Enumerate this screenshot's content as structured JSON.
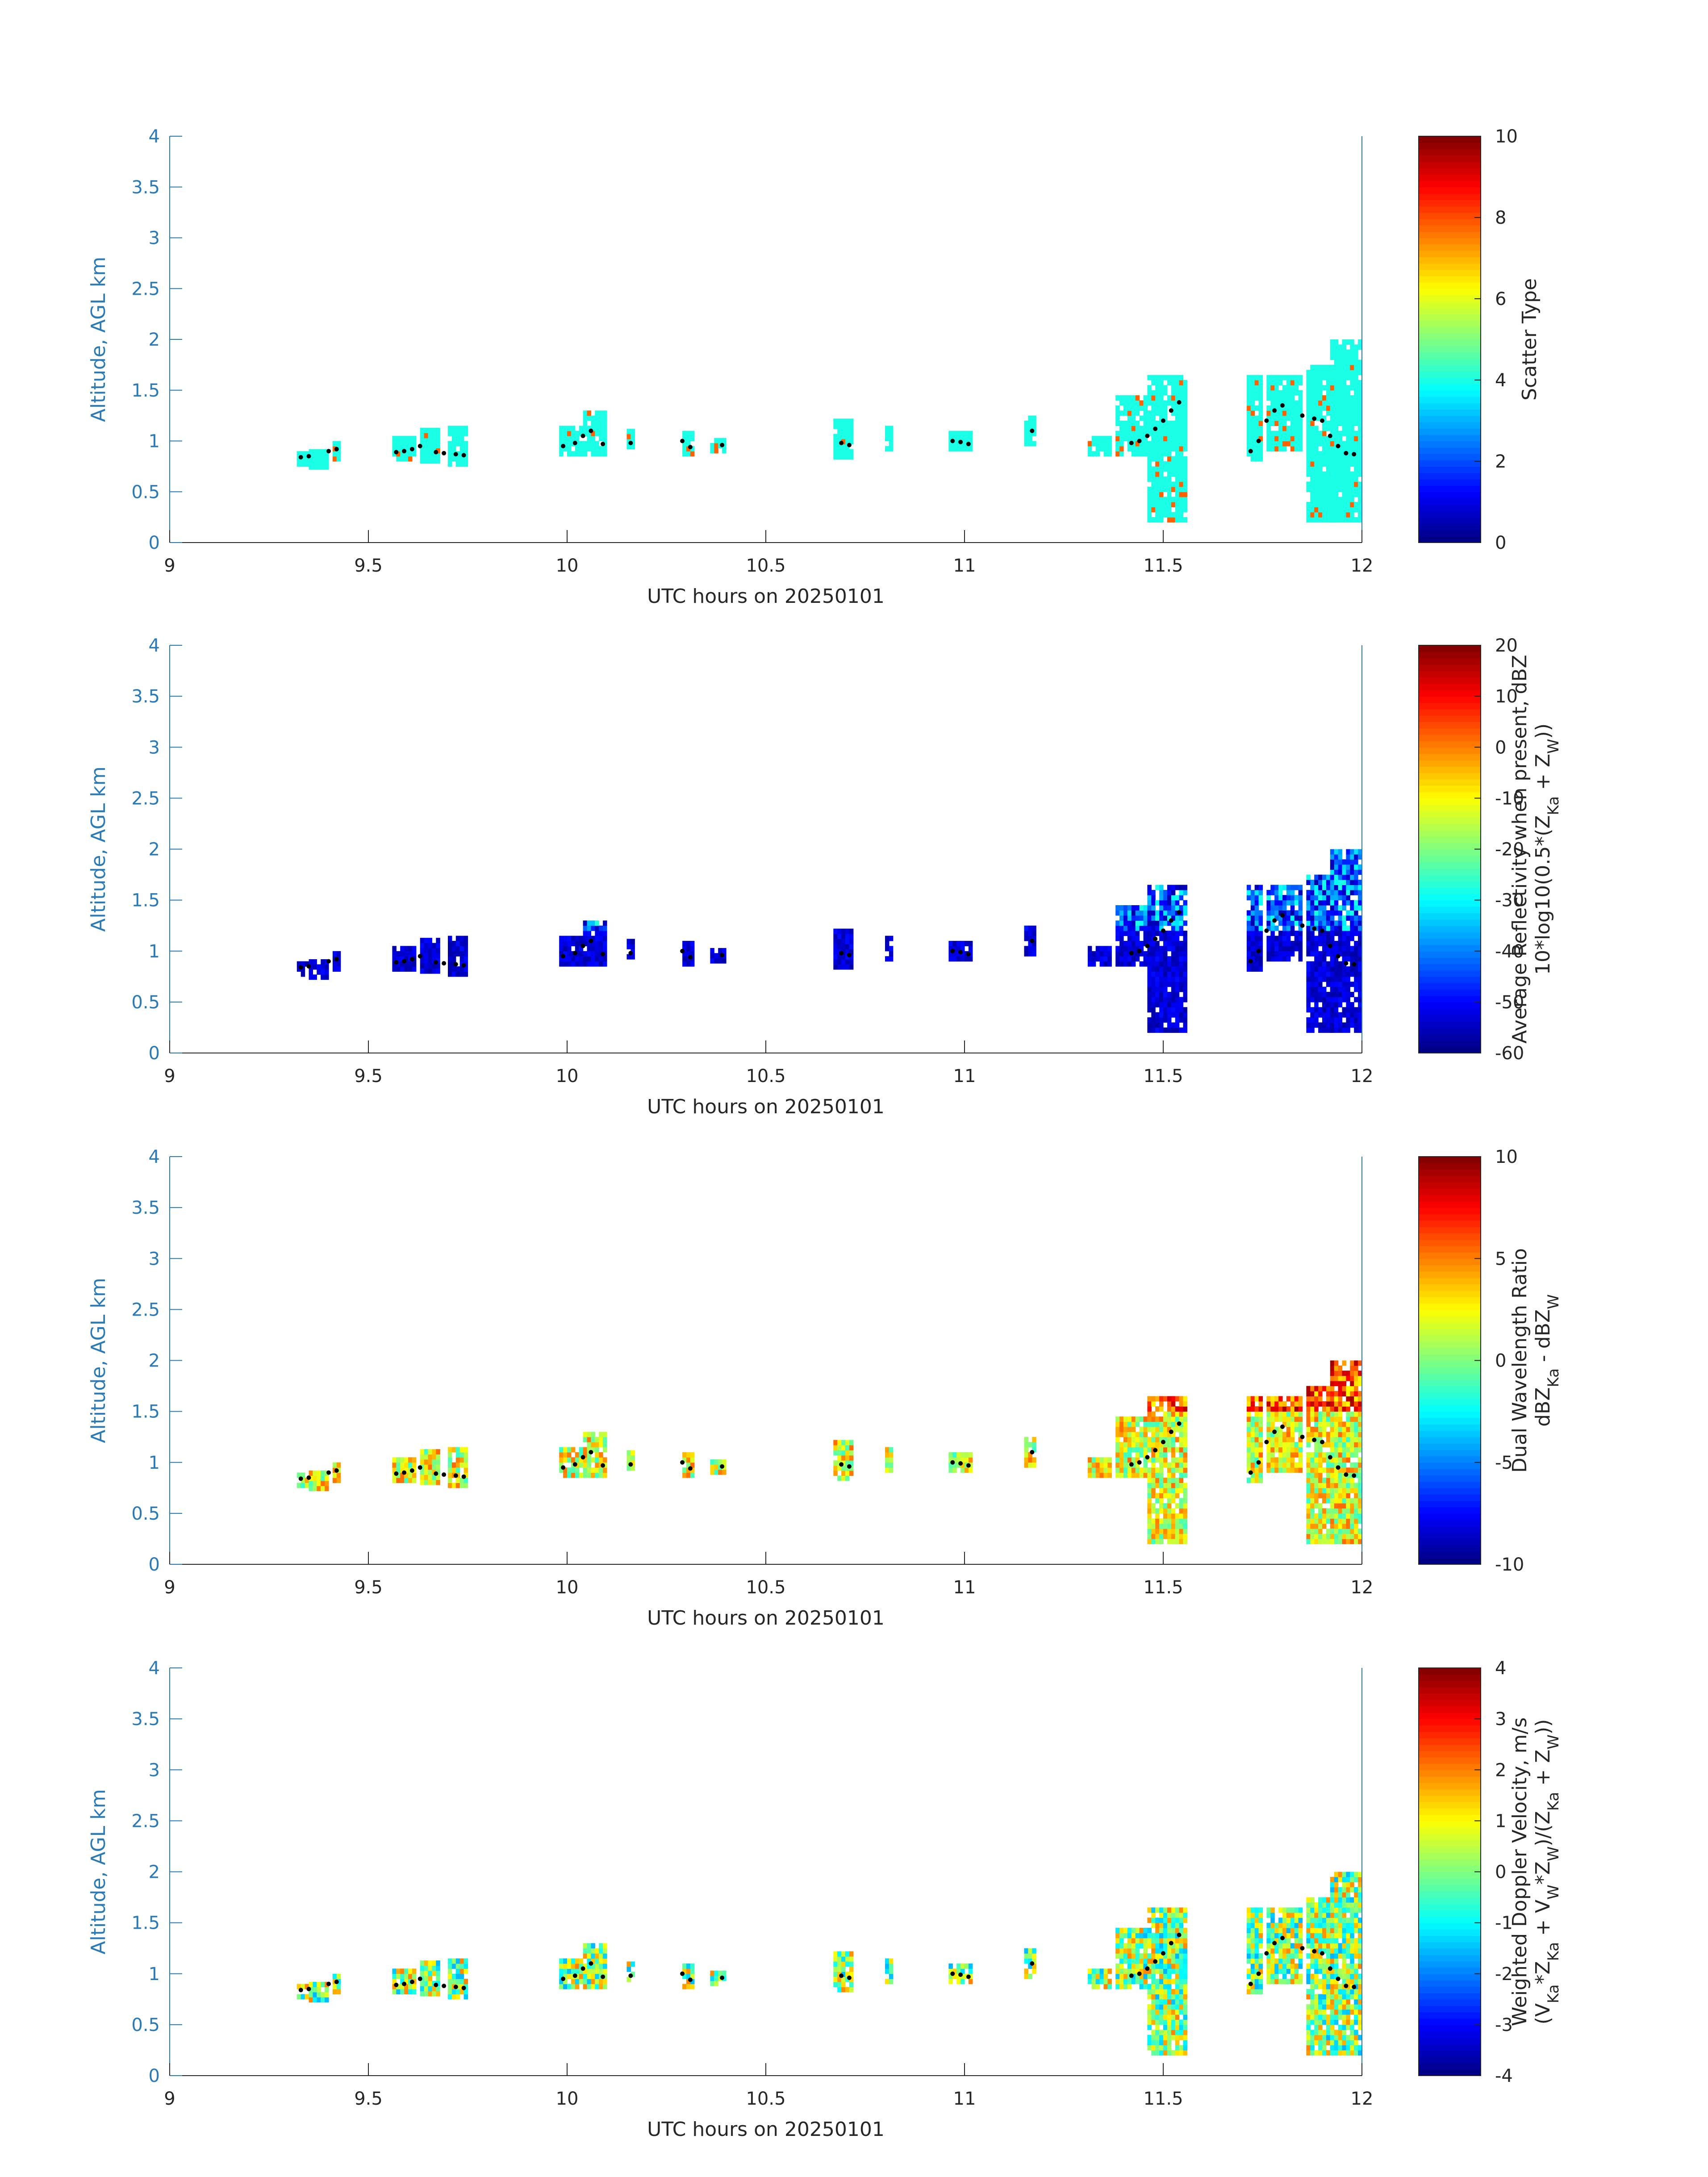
{
  "chart_data": [
    {
      "type": "heatmap",
      "xlabel": "UTC hours on 20250101",
      "ylabel": "Altitude, AGL km",
      "xlim": [
        9,
        12
      ],
      "ylim": [
        0,
        4
      ],
      "xticks": [
        "9",
        "9.5",
        "10",
        "10.5",
        "11",
        "11.5",
        "12"
      ],
      "yticks": [
        "0",
        "0.5",
        "1",
        "1.5",
        "2",
        "2.5",
        "3",
        "3.5",
        "4"
      ],
      "colorbar": {
        "label_lines": [
          "Scatter Type"
        ],
        "range": [
          0,
          10
        ],
        "ticks": [
          "0",
          "2",
          "4",
          "6",
          "8",
          "10"
        ]
      },
      "dominant_value": 4
    },
    {
      "type": "heatmap",
      "xlabel": "UTC hours on 20250101",
      "ylabel": "Altitude, AGL km",
      "xlim": [
        9,
        12
      ],
      "ylim": [
        0,
        4
      ],
      "xticks": [
        "9",
        "9.5",
        "10",
        "10.5",
        "11",
        "11.5",
        "12"
      ],
      "yticks": [
        "0",
        "0.5",
        "1",
        "1.5",
        "2",
        "2.5",
        "3",
        "3.5",
        "4"
      ],
      "colorbar": {
        "label_lines": [
          "Average Reflectivity when present, dBZ",
          "10*log10(0.5*(Z_Ka + Z_W))"
        ],
        "range": [
          -60,
          20
        ],
        "ticks": [
          "-60",
          "-50",
          "-40",
          "-30",
          "-20",
          "-10",
          "0",
          "10",
          "20"
        ]
      },
      "dominant_value": -57
    },
    {
      "type": "heatmap",
      "xlabel": "UTC hours on 20250101",
      "ylabel": "Altitude, AGL km",
      "xlim": [
        9,
        12
      ],
      "ylim": [
        0,
        4
      ],
      "xticks": [
        "9",
        "9.5",
        "10",
        "10.5",
        "11",
        "11.5",
        "12"
      ],
      "yticks": [
        "0",
        "0.5",
        "1",
        "1.5",
        "2",
        "2.5",
        "3",
        "3.5",
        "4"
      ],
      "colorbar": {
        "label_lines": [
          "Dual Wavelength Ratio",
          "dBZ_Ka - dBZ_W"
        ],
        "range": [
          -10,
          10
        ],
        "ticks": [
          "-10",
          "-5",
          "0",
          "5",
          "10"
        ]
      },
      "dominant_value": 2
    },
    {
      "type": "heatmap",
      "xlabel": "UTC hours on 20250101",
      "ylabel": "Altitude, AGL km",
      "xlim": [
        9,
        12
      ],
      "ylim": [
        0,
        4
      ],
      "xticks": [
        "9",
        "9.5",
        "10",
        "10.5",
        "11",
        "11.5",
        "12"
      ],
      "yticks": [
        "0",
        "0.5",
        "1",
        "1.5",
        "2",
        "2.5",
        "3",
        "3.5",
        "4"
      ],
      "colorbar": {
        "label_lines": [
          "Weighted Doppler Velocity, m/s",
          "(V_Ka*Z_Ka + V_W*Z_W)/(Z_Ka + Z_W))"
        ],
        "range": [
          -4,
          4
        ],
        "ticks": [
          "-4",
          "-3",
          "-2",
          "-1",
          "0",
          "1",
          "2",
          "3",
          "4"
        ]
      },
      "dominant_value": 0.2
    }
  ],
  "cloud_columns": [
    {
      "t": 9.32,
      "w": 0.03,
      "lo": 0.75,
      "hi": 0.9
    },
    {
      "t": 9.35,
      "w": 0.05,
      "lo": 0.72,
      "hi": 0.9
    },
    {
      "t": 9.41,
      "w": 0.02,
      "lo": 0.8,
      "hi": 1.0
    },
    {
      "t": 9.56,
      "w": 0.06,
      "lo": 0.8,
      "hi": 1.05
    },
    {
      "t": 9.63,
      "w": 0.05,
      "lo": 0.78,
      "hi": 1.1
    },
    {
      "t": 9.7,
      "w": 0.05,
      "lo": 0.75,
      "hi": 1.15
    },
    {
      "t": 9.98,
      "w": 0.06,
      "lo": 0.85,
      "hi": 1.12
    },
    {
      "t": 10.04,
      "w": 0.06,
      "lo": 0.85,
      "hi": 1.3
    },
    {
      "t": 10.15,
      "w": 0.02,
      "lo": 0.92,
      "hi": 1.12
    },
    {
      "t": 10.29,
      "w": 0.03,
      "lo": 0.85,
      "hi": 1.08
    },
    {
      "t": 10.36,
      "w": 0.04,
      "lo": 0.88,
      "hi": 1.02
    },
    {
      "t": 10.67,
      "w": 0.05,
      "lo": 0.82,
      "hi": 1.2
    },
    {
      "t": 10.8,
      "w": 0.02,
      "lo": 0.9,
      "hi": 1.12
    },
    {
      "t": 10.96,
      "w": 0.06,
      "lo": 0.9,
      "hi": 1.07
    },
    {
      "t": 11.15,
      "w": 0.03,
      "lo": 0.95,
      "hi": 1.25
    },
    {
      "t": 11.31,
      "w": 0.06,
      "lo": 0.85,
      "hi": 1.05
    },
    {
      "t": 11.38,
      "w": 0.08,
      "lo": 0.85,
      "hi": 1.45
    },
    {
      "t": 11.46,
      "w": 0.1,
      "lo": 0.2,
      "hi": 1.62
    },
    {
      "t": 11.71,
      "w": 0.04,
      "lo": 0.8,
      "hi": 1.62
    },
    {
      "t": 11.76,
      "w": 0.09,
      "lo": 0.9,
      "hi": 1.65
    },
    {
      "t": 11.86,
      "w": 0.07,
      "lo": 0.2,
      "hi": 1.75
    },
    {
      "t": 11.92,
      "w": 0.08,
      "lo": 0.2,
      "hi": 2.0
    }
  ],
  "profile_points": [
    {
      "t": 9.33,
      "y": 0.84
    },
    {
      "t": 9.35,
      "y": 0.85
    },
    {
      "t": 9.4,
      "y": 0.9
    },
    {
      "t": 9.42,
      "y": 0.92
    },
    {
      "t": 9.57,
      "y": 0.89
    },
    {
      "t": 9.59,
      "y": 0.9
    },
    {
      "t": 9.61,
      "y": 0.92
    },
    {
      "t": 9.63,
      "y": 0.95
    },
    {
      "t": 9.67,
      "y": 0.89
    },
    {
      "t": 9.69,
      "y": 0.88
    },
    {
      "t": 9.72,
      "y": 0.87
    },
    {
      "t": 9.74,
      "y": 0.86
    },
    {
      "t": 9.99,
      "y": 0.95
    },
    {
      "t": 10.02,
      "y": 0.98
    },
    {
      "t": 10.04,
      "y": 1.05
    },
    {
      "t": 10.06,
      "y": 1.1
    },
    {
      "t": 10.09,
      "y": 0.97
    },
    {
      "t": 10.16,
      "y": 0.98
    },
    {
      "t": 10.29,
      "y": 1.0
    },
    {
      "t": 10.31,
      "y": 0.94
    },
    {
      "t": 10.39,
      "y": 0.96
    },
    {
      "t": 10.69,
      "y": 0.98
    },
    {
      "t": 10.71,
      "y": 0.96
    },
    {
      "t": 10.97,
      "y": 1.0
    },
    {
      "t": 10.99,
      "y": 0.99
    },
    {
      "t": 11.01,
      "y": 0.97
    },
    {
      "t": 11.17,
      "y": 1.1
    },
    {
      "t": 11.42,
      "y": 0.98
    },
    {
      "t": 11.44,
      "y": 1.0
    },
    {
      "t": 11.46,
      "y": 1.05
    },
    {
      "t": 11.48,
      "y": 1.12
    },
    {
      "t": 11.5,
      "y": 1.2
    },
    {
      "t": 11.52,
      "y": 1.3
    },
    {
      "t": 11.54,
      "y": 1.38
    },
    {
      "t": 11.72,
      "y": 0.9
    },
    {
      "t": 11.74,
      "y": 1.0
    },
    {
      "t": 11.76,
      "y": 1.2
    },
    {
      "t": 11.78,
      "y": 1.3
    },
    {
      "t": 11.8,
      "y": 1.35
    },
    {
      "t": 11.85,
      "y": 1.25
    },
    {
      "t": 11.88,
      "y": 1.22
    },
    {
      "t": 11.9,
      "y": 1.2
    },
    {
      "t": 11.92,
      "y": 1.05
    },
    {
      "t": 11.94,
      "y": 0.95
    },
    {
      "t": 11.96,
      "y": 0.88
    },
    {
      "t": 11.98,
      "y": 0.87
    }
  ]
}
